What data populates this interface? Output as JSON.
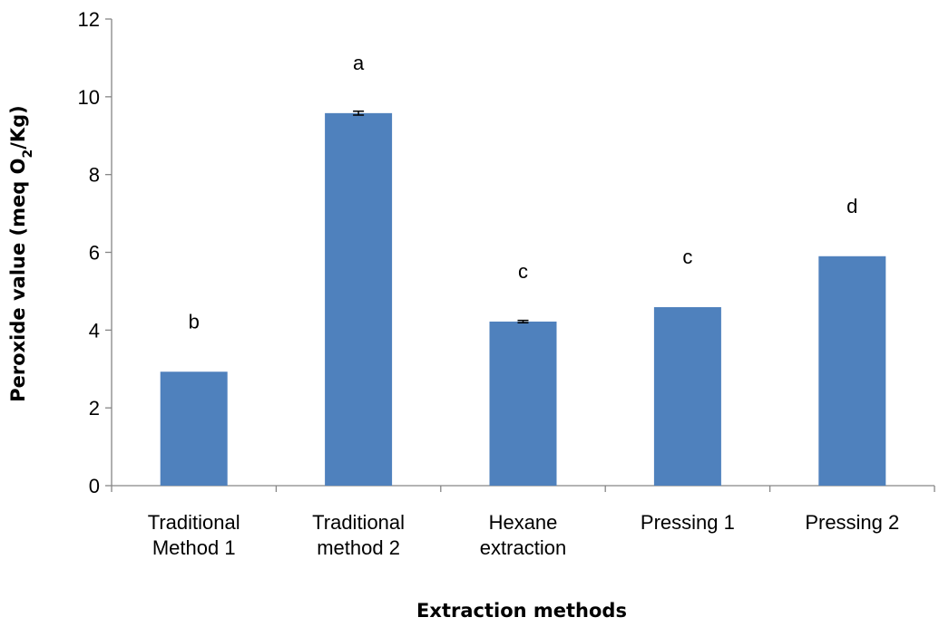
{
  "chart_data": {
    "type": "bar",
    "categories": [
      [
        "Traditional",
        "Method 1"
      ],
      [
        "Traditional",
        "method 2"
      ],
      [
        "Hexane",
        "extraction"
      ],
      [
        "Pressing 1"
      ],
      [
        "Pressing 2"
      ]
    ],
    "values": [
      2.93,
      9.58,
      4.22,
      4.59,
      5.9
    ],
    "errors": [
      0,
      0.05,
      0.03,
      0,
      0
    ],
    "significance_letters": [
      "b",
      "a",
      "c",
      "c",
      "d"
    ],
    "xlabel": "Extraction methods",
    "ylabel": {
      "prefix": "Peroxide value (meq O",
      "subscript": "2",
      "suffix": "/Kg)"
    },
    "ylim": [
      0,
      12
    ],
    "yticks": [
      0,
      2,
      4,
      6,
      8,
      10,
      12
    ],
    "grid": false,
    "legend": "none",
    "bar_color": "#4F81BD",
    "axis_color": "#868686"
  }
}
